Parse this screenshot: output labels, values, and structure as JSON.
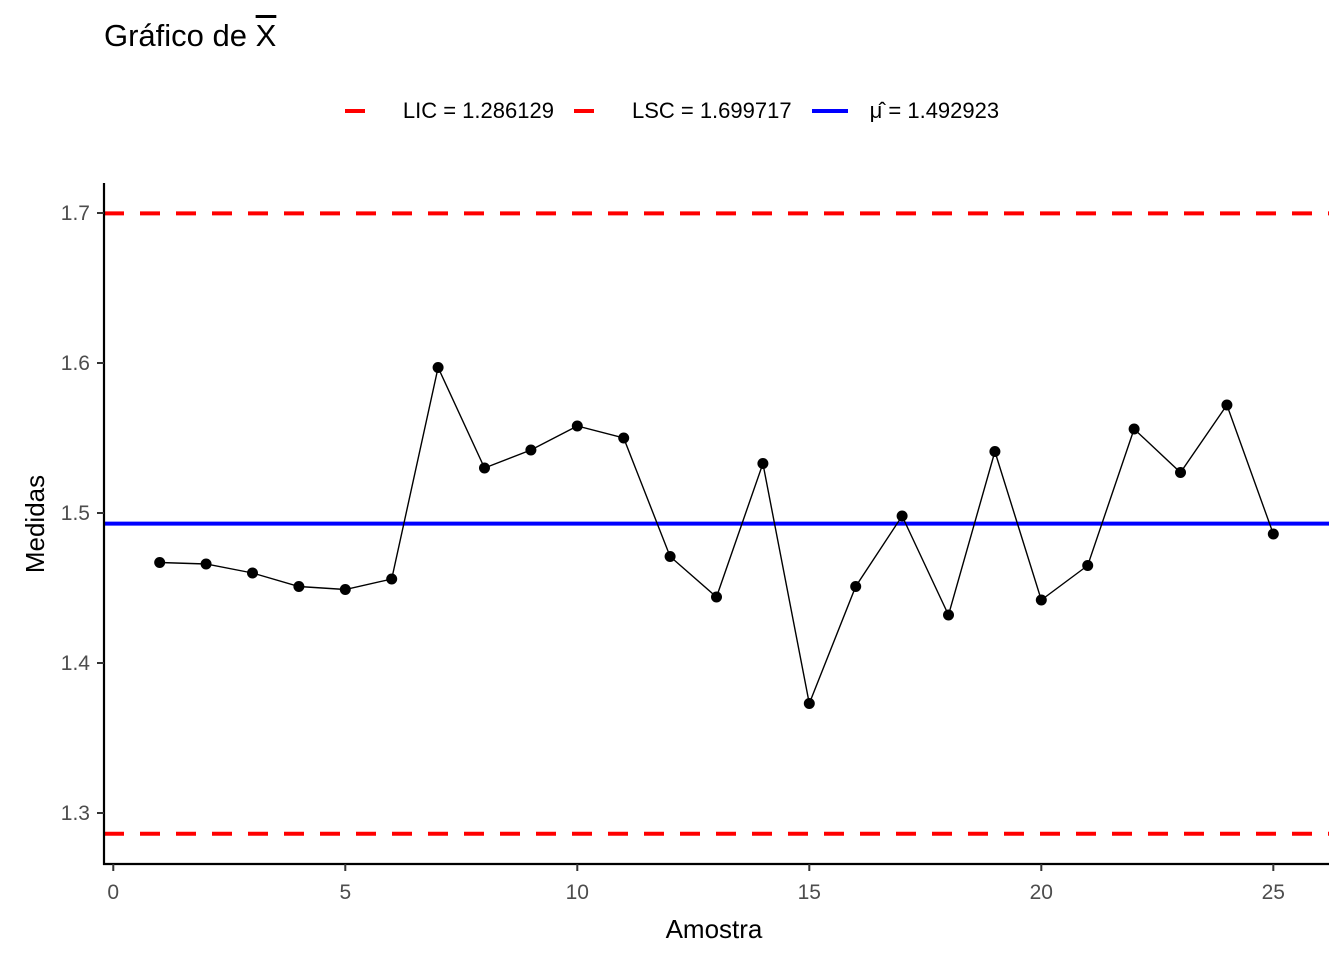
{
  "title_main": "Gráfico de ",
  "title_symbol": "X",
  "legend": [
    {
      "label": "LIC = 1.286129",
      "color": "#ff0000",
      "style": "dashed"
    },
    {
      "label": "LSC = 1.699717",
      "color": "#ff0000",
      "style": "dashed"
    },
    {
      "label": "μ̂ = 1.492923",
      "color": "#0000ff",
      "style": "solid"
    }
  ],
  "chart_data": {
    "type": "line",
    "title": "Gráfico de X̄",
    "xlabel": "Amostra",
    "ylabel": "Medidas",
    "xlim": [
      -0.2,
      26.2
    ],
    "ylim": [
      1.266,
      1.72
    ],
    "x_ticks": [
      0,
      5,
      10,
      15,
      20,
      25
    ],
    "y_ticks": [
      1.3,
      1.4,
      1.5,
      1.6,
      1.7
    ],
    "x_tick_labels": [
      "0",
      "5",
      "10",
      "15",
      "20",
      "25"
    ],
    "y_tick_labels": [
      "1.3",
      "1.4",
      "1.5",
      "1.6",
      "1.7"
    ],
    "grid": false,
    "legend_position": "top",
    "series": [
      {
        "style": "line+points",
        "color": "#000000",
        "x": [
          1,
          2,
          3,
          4,
          5,
          6,
          7,
          8,
          9,
          10,
          11,
          12,
          13,
          14,
          15,
          16,
          17,
          18,
          19,
          20,
          21,
          22,
          23,
          24,
          25
        ],
        "y": [
          1.467,
          1.466,
          1.46,
          1.451,
          1.449,
          1.456,
          1.597,
          1.53,
          1.542,
          1.558,
          1.55,
          1.471,
          1.444,
          1.533,
          1.373,
          1.451,
          1.498,
          1.432,
          1.541,
          1.442,
          1.465,
          1.556,
          1.527,
          1.572,
          1.486
        ]
      }
    ],
    "hlines": [
      {
        "name": "LIC",
        "value": 1.286129,
        "color": "#ff0000",
        "style": "dashed"
      },
      {
        "name": "LSC",
        "value": 1.699717,
        "color": "#ff0000",
        "style": "dashed"
      },
      {
        "name": "μ̂",
        "value": 1.492923,
        "color": "#0000ff",
        "style": "solid"
      }
    ]
  }
}
